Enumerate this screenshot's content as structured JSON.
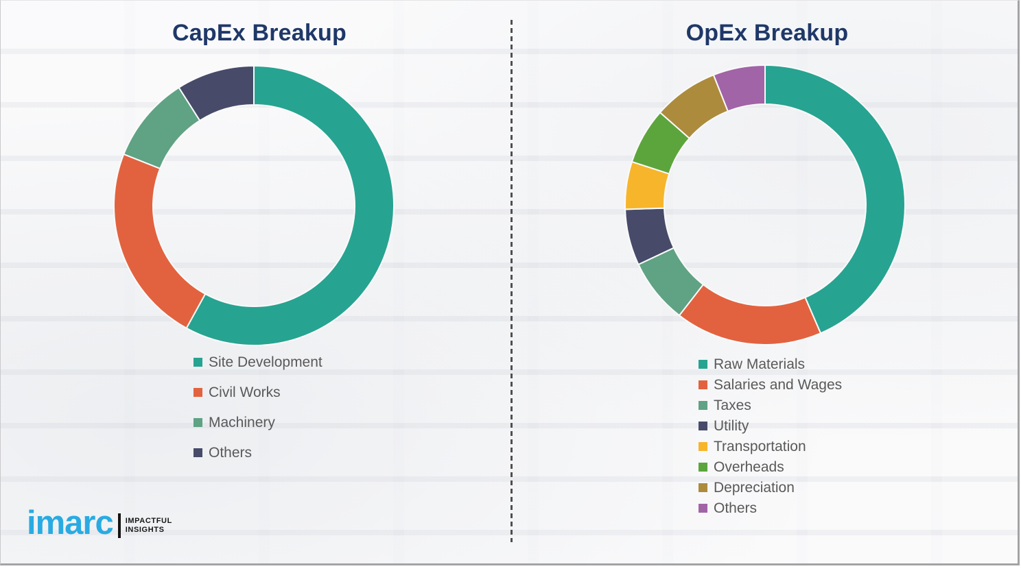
{
  "chart_data": [
    {
      "type": "pie",
      "subtype": "donut",
      "title": "CapEx Breakup",
      "categories": [
        "Site Development",
        "Civil Works",
        "Machinery",
        "Others"
      ],
      "values": [
        58,
        23,
        10,
        9
      ],
      "unit": "percent-estimated-from-arc-angles",
      "colors": [
        "#27a391",
        "#e2623f",
        "#5fa284",
        "#474b69"
      ],
      "start_angle_deg": 0,
      "direction": "clockwise",
      "data_labels": false,
      "legend_position": "below-left"
    },
    {
      "type": "pie",
      "subtype": "donut",
      "title": "OpEx Breakup",
      "categories": [
        "Raw Materials",
        "Salaries and Wages",
        "Taxes",
        "Utility",
        "Transportation",
        "Overheads",
        "Depreciation",
        "Others"
      ],
      "values": [
        43.5,
        17,
        7.5,
        6.5,
        5.5,
        6.5,
        7.5,
        6
      ],
      "unit": "percent-estimated-from-arc-angles",
      "colors": [
        "#27a391",
        "#e2623f",
        "#5fa284",
        "#474b69",
        "#f7b52c",
        "#5ca53c",
        "#ac8b3d",
        "#a164a6"
      ],
      "start_angle_deg": 0,
      "direction": "clockwise",
      "data_labels": false,
      "legend_position": "below-left"
    }
  ],
  "branding": {
    "logo_text": "imarc",
    "tagline": [
      "IMPACTFUL",
      "INSIGHTS"
    ],
    "logo_color": "#29abe2",
    "tagline_color": "#161616"
  },
  "styles": {
    "title_color": "#1f3868",
    "legend_text_color": "#595959",
    "segment_separator_color": "#fafafa",
    "divider_color": "#4f4f4f",
    "background_color": "#f4f4f6",
    "border_color": "#a3a3a5"
  }
}
